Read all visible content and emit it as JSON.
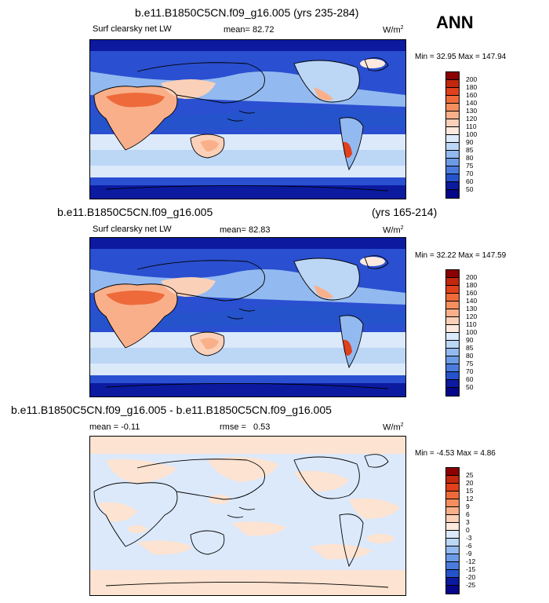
{
  "season": "ANN",
  "panels": [
    {
      "title": "b.e11.B1850C5CN.f09_g16.005 (yrs 235-284)",
      "variable": "Surf clearsky net LW",
      "mean_label": "mean=",
      "mean_value": "82.72",
      "units": "W/m",
      "units_sup": "2",
      "minmax": "Min = 32.95 Max = 147.94",
      "colorbar_labels": [
        "200",
        "180",
        "160",
        "140",
        "130",
        "120",
        "110",
        "100",
        "90",
        "85",
        "80",
        "75",
        "70",
        "60",
        "50"
      ]
    },
    {
      "title": "b.e11.B1850C5CN.f09_g16.005",
      "years": "(yrs 165-214)",
      "variable": "Surf clearsky net LW",
      "mean_label": "mean=",
      "mean_value": "82.83",
      "units": "W/m",
      "units_sup": "2",
      "minmax": "Min = 32.22 Max = 147.59",
      "colorbar_labels": [
        "200",
        "180",
        "160",
        "140",
        "130",
        "120",
        "110",
        "100",
        "90",
        "85",
        "80",
        "75",
        "70",
        "60",
        "50"
      ]
    },
    {
      "title": "b.e11.B1850C5CN.f09_g16.005 - b.e11.B1850C5CN.f09_g16.005",
      "mean_label": "mean =",
      "mean_value": "-0.11",
      "rmse_label": "rmse =",
      "rmse_value": "0.53",
      "units": "W/m",
      "units_sup": "2",
      "minmax": "Min = -4.53 Max =  4.86",
      "colorbar_labels": [
        "25",
        "20",
        "15",
        "12",
        "9",
        "6",
        "3",
        "0",
        "-3",
        "-6",
        "-9",
        "-12",
        "-15",
        "-20",
        "-25"
      ]
    }
  ],
  "colors": {
    "scale": [
      "#8b0000",
      "#c1280e",
      "#e0401c",
      "#ee6a3a",
      "#f58e5e",
      "#f9b08a",
      "#fbd0b8",
      "#fde9de",
      "#dce9fb",
      "#bcd6f6",
      "#93baf0",
      "#6c9be6",
      "#4a7bdc",
      "#2553cc",
      "#0c1aa0",
      "#06068a"
    ],
    "land_warm": "#fde3d1",
    "ocean_light": "#dbe9fb",
    "deep_blue": "#1f3fc4"
  }
}
